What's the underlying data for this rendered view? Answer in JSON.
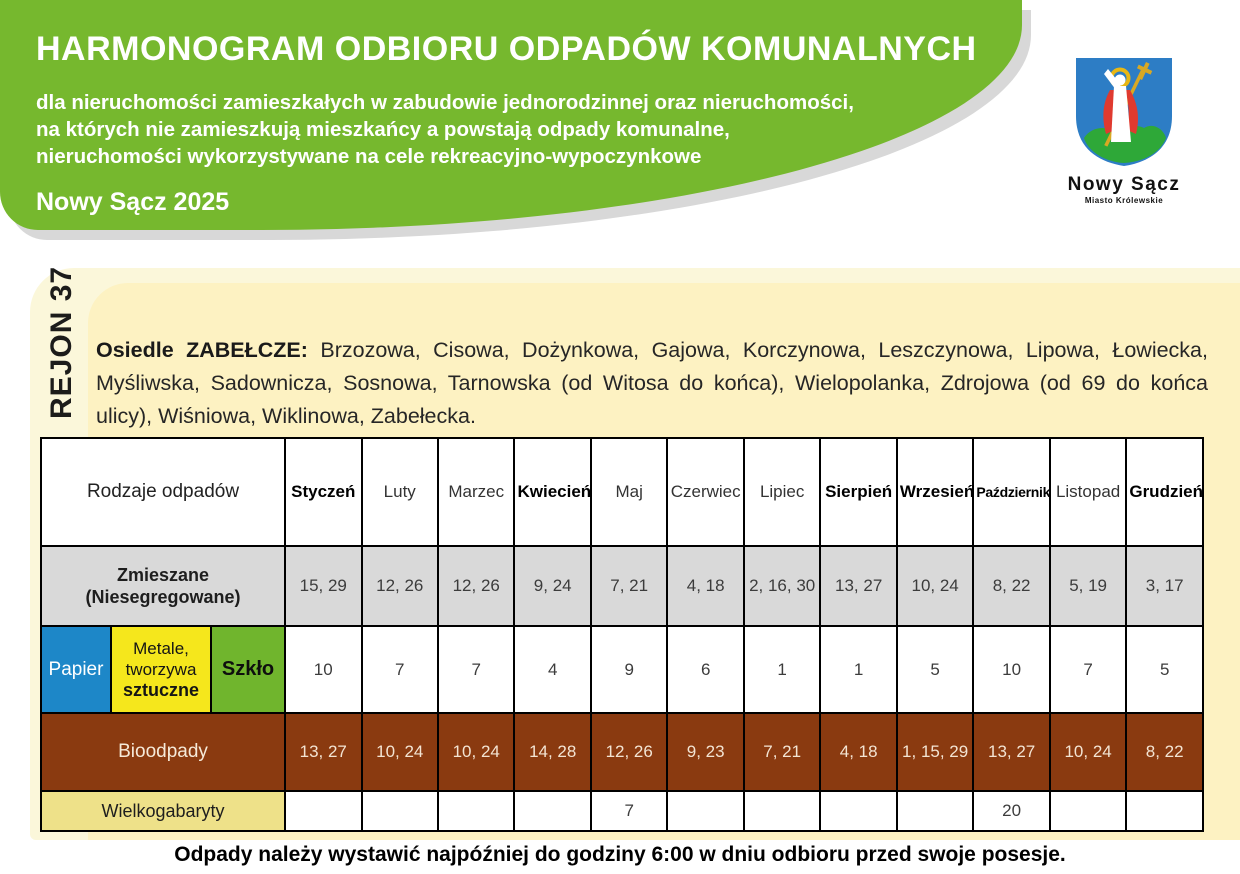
{
  "header": {
    "title": "HARMONOGRAM ODBIORU ODPADÓW KOMUNALNYCH",
    "subtitle_lines": [
      "dla nieruchomości zamieszkałych w zabudowie jednorodzinnej oraz nieruchomości,",
      "na których nie zamieszkują mieszkańcy a powstają odpady komunalne,",
      "nieruchomości wykorzystywane na cele rekreacyjno-wypoczynkowe"
    ],
    "city_year": "Nowy Sącz 2025"
  },
  "logo": {
    "name": "Nowy Sącz",
    "subtitle": "Miasto Królewskie"
  },
  "region": {
    "label": "REJON 37",
    "streets_bold": "Osiedle ZABEŁCZE:",
    "streets": "Brzozowa, Cisowa, Dożynkowa, Gajowa, Korczynowa, Leszczynowa, Lipowa, Łowiecka, Myśliwska, Sadownicza, Sosnowa, Tarnowska (od Witosa do końca), Wielopolanka, Zdrojowa (od 69 do końca ulicy), Wiśniowa, Wiklinowa, Zabełecka."
  },
  "table": {
    "corner_header": "Rodzaje odpadów",
    "months": [
      {
        "label": "Styczeń",
        "bold": true
      },
      {
        "label": "Luty",
        "bold": false
      },
      {
        "label": "Marzec",
        "bold": false
      },
      {
        "label": "Kwiecień",
        "bold": true
      },
      {
        "label": "Maj",
        "bold": false
      },
      {
        "label": "Czerwiec",
        "bold": false
      },
      {
        "label": "Lipiec",
        "bold": false
      },
      {
        "label": "Sierpień",
        "bold": true
      },
      {
        "label": "Wrzesień",
        "bold": true
      },
      {
        "label": "Październik",
        "bold": true
      },
      {
        "label": "Listopad",
        "bold": false
      },
      {
        "label": "Grudzień",
        "bold": true
      }
    ],
    "recycling": {
      "papier": "Papier",
      "metale_l1": "Metale,",
      "metale_l2": "tworzywa",
      "metale_l3": "sztuczne",
      "szklo": "Szkło"
    },
    "rows": [
      {
        "type": "zmieszane",
        "label_line1": "Zmieszane",
        "label_line2": "(Niesegregowane)",
        "values": [
          "15, 29",
          "12, 26",
          "12, 26",
          "9, 24",
          "7, 21",
          "4, 18",
          "2, 16, 30",
          "13, 27",
          "10, 24",
          "8, 22",
          "5, 19",
          "3, 17"
        ]
      },
      {
        "type": "segregacja",
        "values": [
          "10",
          "7",
          "7",
          "4",
          "9",
          "6",
          "1",
          "1",
          "5",
          "10",
          "7",
          "5"
        ]
      },
      {
        "type": "bio",
        "label": "Bioodpady",
        "values": [
          "13, 27",
          "10, 24",
          "10, 24",
          "14, 28",
          "12, 26",
          "9, 23",
          "7, 21",
          "4, 18",
          "1, 15, 29",
          "13, 27",
          "10, 24",
          "8, 22"
        ]
      },
      {
        "type": "wielkogabaryty",
        "label": "Wielkogabaryty",
        "values": [
          "",
          "",
          "",
          "",
          "7",
          "",
          "",
          "",
          "",
          "20",
          "",
          ""
        ]
      }
    ]
  },
  "footer": {
    "note": "Odpady należy wystawić najpóźniej do godziny 6:00 w dniu odbioru przed swoje posesje."
  },
  "colors": {
    "header_green": "#76b82e",
    "header_shadow": "#d8d8d8",
    "panel_outer_yellow": "#fbf7da",
    "panel_inner_yellow": "#fdf2c2",
    "zmieszane_gray": "#d9d9d9",
    "papier_blue": "#1d87c8",
    "metale_yellow": "#f5e71c",
    "szklo_green": "#70b52d",
    "bio_brown": "#8a3a10",
    "wielkogabaryty_yellow": "#eee189",
    "shield_blue": "#2d7dc5",
    "shield_hill_green": "#2ea838",
    "shield_gold": "#d9a823",
    "shield_red": "#e03a2f"
  }
}
